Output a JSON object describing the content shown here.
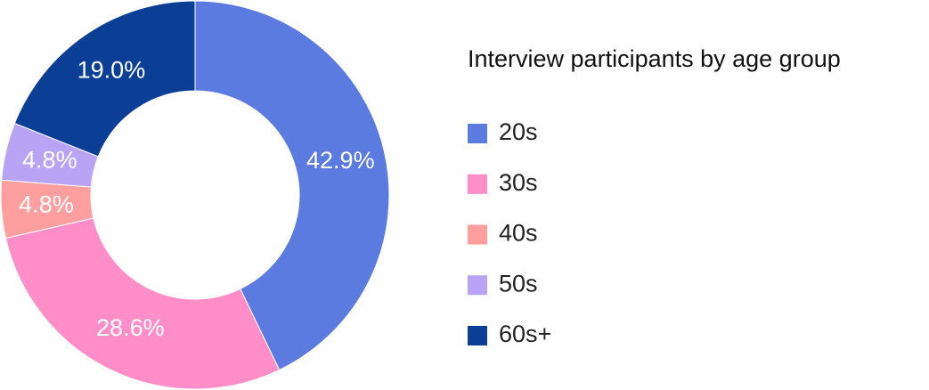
{
  "chart_data": {
    "type": "donut",
    "title": "Interview participants by age group",
    "categories": [
      "20s",
      "30s",
      "40s",
      "50s",
      "60s+"
    ],
    "values": [
      42.9,
      28.6,
      4.8,
      4.8,
      19.0
    ],
    "value_labels": [
      "42.9%",
      "28.6%",
      "4.8%",
      "4.8%",
      "19.0%"
    ],
    "colors": [
      "#5b7be0",
      "#ff8dc8",
      "#ff9e9e",
      "#b8a3f5",
      "#0b3f96"
    ]
  }
}
